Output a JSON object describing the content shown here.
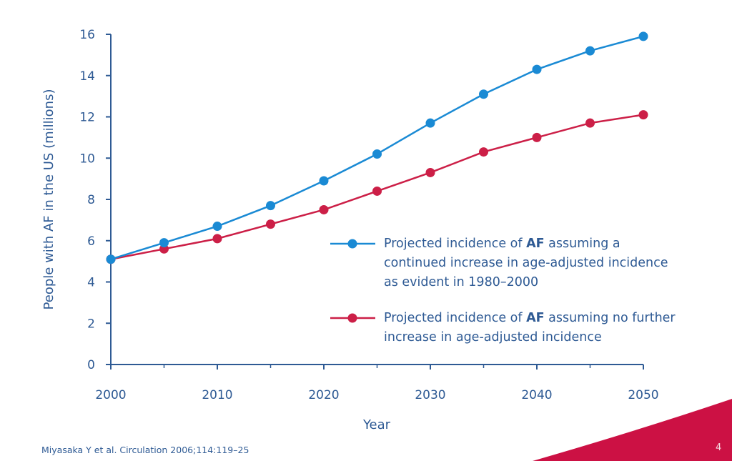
{
  "chart_data": {
    "type": "line",
    "title": "",
    "xlabel": "Year",
    "ylabel": "People with AF in the US (millions)",
    "xlim": [
      2000,
      2050
    ],
    "ylim": [
      0,
      16
    ],
    "x_ticks": [
      2000,
      2010,
      2020,
      2030,
      2040,
      2050
    ],
    "y_ticks": [
      0,
      2,
      4,
      6,
      8,
      10,
      12,
      14,
      16
    ],
    "x_minor_ticks": [
      2005,
      2015,
      2025,
      2035,
      2045
    ],
    "grid": false,
    "legend_placement": "center-right",
    "x": [
      2000,
      2005,
      2010,
      2015,
      2020,
      2025,
      2030,
      2035,
      2040,
      2045,
      2050
    ],
    "series": [
      {
        "name": "Projected incidence of AF assuming a continued increase in age-adjusted incidence as evident in 1980–2000",
        "legend_lines": [
          {
            "pre": "Projected incidence of ",
            "bold": "AF",
            "post": " assuming a"
          },
          {
            "pre": "continued increase in age-adjusted incidence",
            "bold": "",
            "post": ""
          },
          {
            "pre": "as evident in 1980–2000",
            "bold": "",
            "post": ""
          }
        ],
        "color": "#1a8ad4",
        "values": [
          5.1,
          5.9,
          6.7,
          7.7,
          8.9,
          10.2,
          11.7,
          13.1,
          14.3,
          15.2,
          15.9
        ]
      },
      {
        "name": "Projected incidence of AF assuming no further increase in age-adjusted incidence",
        "legend_lines": [
          {
            "pre": "Projected incidence of ",
            "bold": "AF",
            "post": " assuming no further"
          },
          {
            "pre": "increase in age-adjusted incidence",
            "bold": "",
            "post": ""
          }
        ],
        "color": "#cc1f47",
        "values": [
          5.1,
          5.6,
          6.1,
          6.8,
          7.5,
          8.4,
          9.3,
          10.3,
          11.0,
          11.7,
          12.1
        ]
      }
    ],
    "axis_color": "#2e5a94"
  },
  "footer": {
    "source": "Miyasaka Y et al. Circulation 2006;114:119–25",
    "page_number": "4",
    "accent_color": "#cc1144"
  }
}
